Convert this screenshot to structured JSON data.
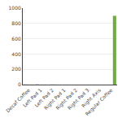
{
  "chart_data": {
    "type": "bar",
    "categories": [
      "Decaf Coffee",
      "Left Pad 1",
      "Left Pad 2",
      "Right Pad 1",
      "Right Pad 2",
      "Right Pad 3",
      "Right Axis",
      "Regular Coffee"
    ],
    "series": [
      {
        "color": "#4472C4",
        "values": [
          2,
          3,
          0,
          0,
          0,
          0,
          0,
          0
        ]
      },
      {
        "color": "#ED7D31",
        "values": [
          1,
          0,
          2,
          0,
          0,
          0,
          0,
          0
        ]
      },
      {
        "color": "#70AD47",
        "values": [
          1,
          1,
          1,
          0,
          0,
          0,
          0,
          900
        ]
      }
    ],
    "ylim": [
      0,
      1000
    ],
    "yticks": [
      0,
      200,
      400,
      600,
      800,
      1000
    ],
    "grid": true
  }
}
